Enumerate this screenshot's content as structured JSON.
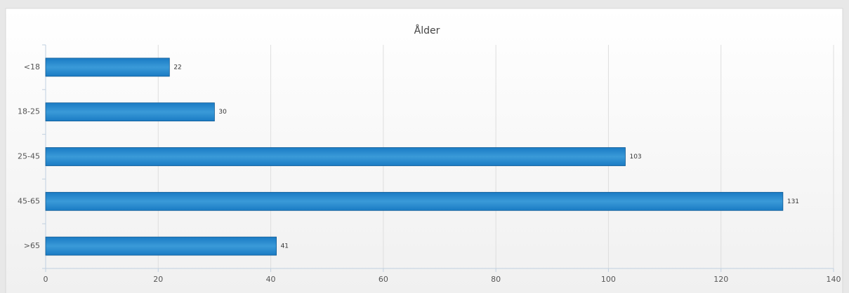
{
  "chart_data": {
    "type": "bar",
    "orientation": "horizontal",
    "title": "Ålder",
    "categories": [
      "<18",
      "18-25",
      "25-45",
      "45-65",
      ">65"
    ],
    "values": [
      22,
      30,
      103,
      131,
      41
    ],
    "color": "#1a7bc4",
    "xlim": [
      0,
      140
    ],
    "xticks": [
      0,
      20,
      40,
      60,
      80,
      100,
      120,
      140
    ],
    "grid": true
  }
}
